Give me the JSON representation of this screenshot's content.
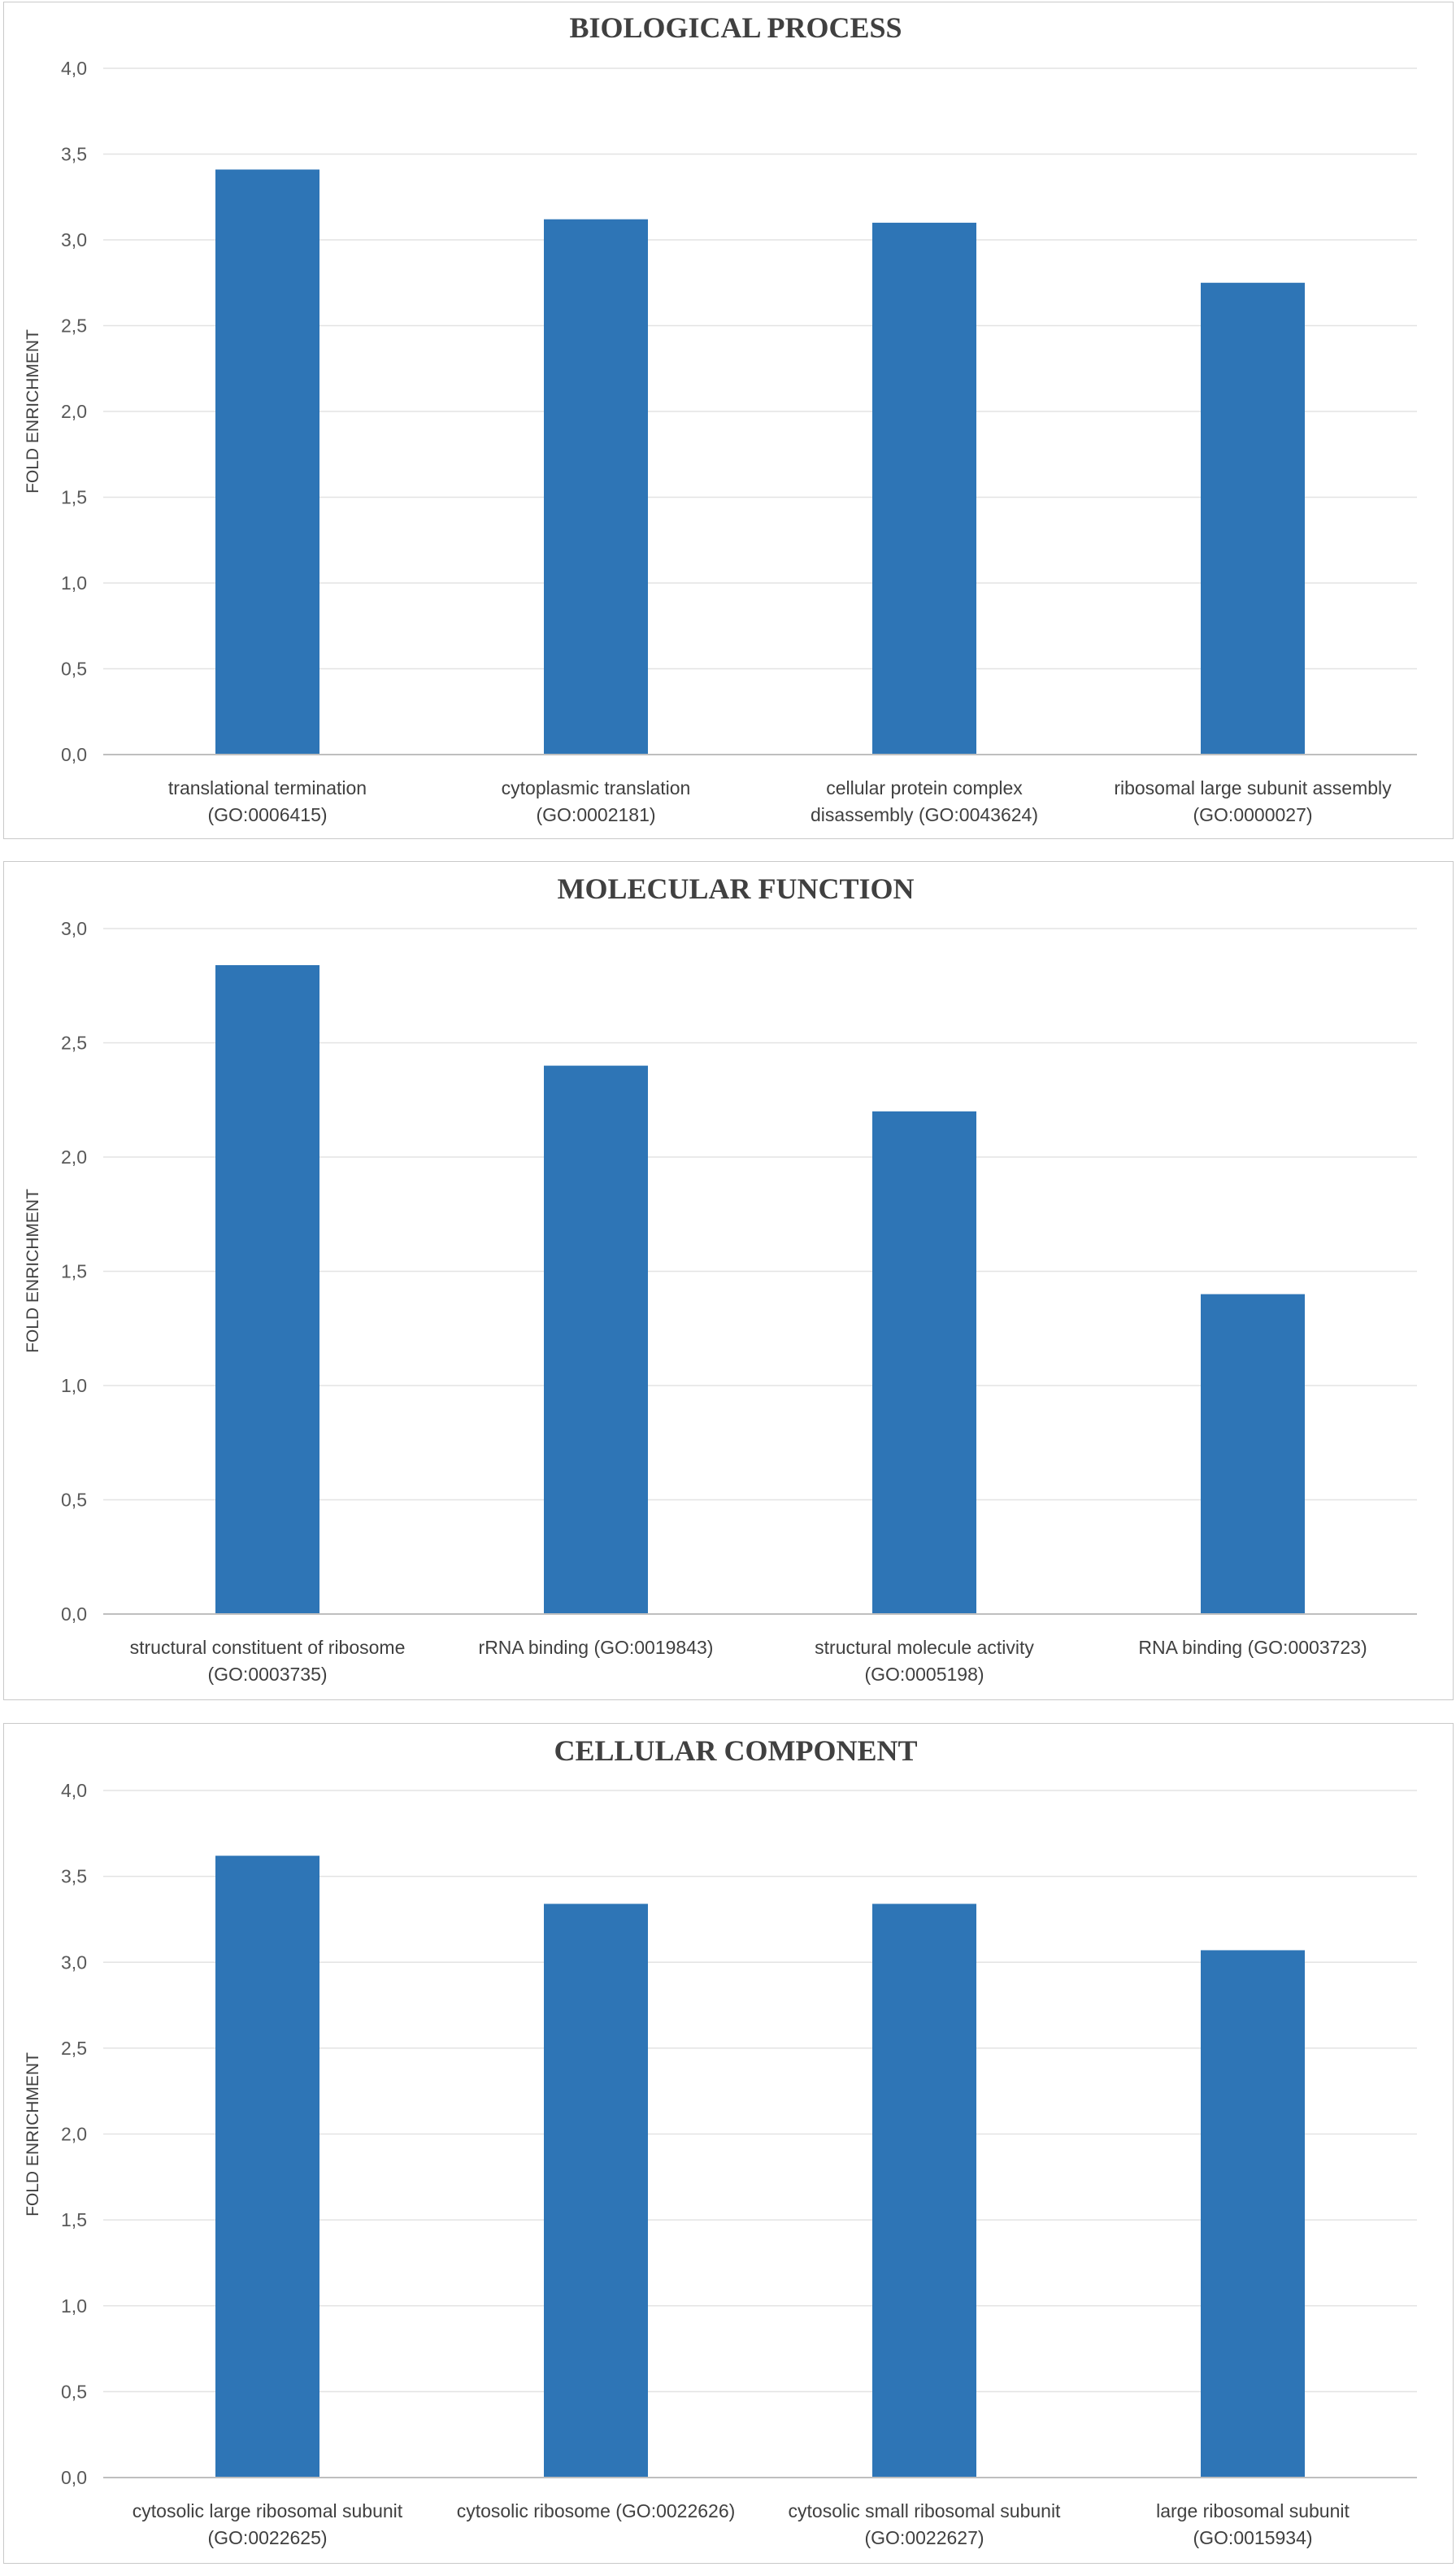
{
  "chart_data": [
    {
      "type": "bar",
      "title": "BIOLOGICAL PROCESS",
      "xlabel": "",
      "ylabel": "FOLD ENRICHMENT",
      "ylim": [
        0,
        4.0
      ],
      "yticks": [
        "0,0",
        "0,5",
        "1,0",
        "1,5",
        "2,0",
        "2,5",
        "3,0",
        "3,5",
        "4,0"
      ],
      "categories": [
        [
          "translational termination",
          "(GO:0006415)"
        ],
        [
          "cytoplasmic translation",
          "(GO:0002181)"
        ],
        [
          "cellular protein complex",
          "disassembly (GO:0043624)"
        ],
        [
          "ribosomal large subunit assembly",
          "(GO:0000027)"
        ]
      ],
      "values": [
        3.41,
        3.12,
        3.1,
        2.75
      ],
      "color": "#2E75B6",
      "grid": true
    },
    {
      "type": "bar",
      "title": "MOLECULAR FUNCTION",
      "xlabel": "",
      "ylabel": "FOLD ENRICHMENT",
      "ylim": [
        0,
        3.0
      ],
      "yticks": [
        "0,0",
        "0,5",
        "1,0",
        "1,5",
        "2,0",
        "2,5",
        "3,0"
      ],
      "categories": [
        [
          "structural constituent of ribosome",
          "(GO:0003735)"
        ],
        [
          "rRNA binding (GO:0019843)"
        ],
        [
          "structural molecule activity",
          "(GO:0005198)"
        ],
        [
          "RNA binding (GO:0003723)"
        ]
      ],
      "values": [
        2.84,
        2.4,
        2.2,
        1.4
      ],
      "color": "#2E75B6",
      "grid": true
    },
    {
      "type": "bar",
      "title": "CELLULAR COMPONENT",
      "xlabel": "",
      "ylabel": "FOLD ENRICHMENT",
      "ylim": [
        0,
        4.0
      ],
      "yticks": [
        "0,0",
        "0,5",
        "1,0",
        "1,5",
        "2,0",
        "2,5",
        "3,0",
        "3,5",
        "4,0"
      ],
      "categories": [
        [
          "cytosolic large ribosomal subunit",
          "(GO:0022625)"
        ],
        [
          "cytosolic ribosome (GO:0022626)"
        ],
        [
          "cytosolic small ribosomal subunit",
          "(GO:0022627)"
        ],
        [
          "large ribosomal subunit",
          "(GO:0015934)"
        ]
      ],
      "values": [
        3.62,
        3.34,
        3.34,
        3.07
      ],
      "color": "#2E75B6",
      "grid": true
    }
  ]
}
